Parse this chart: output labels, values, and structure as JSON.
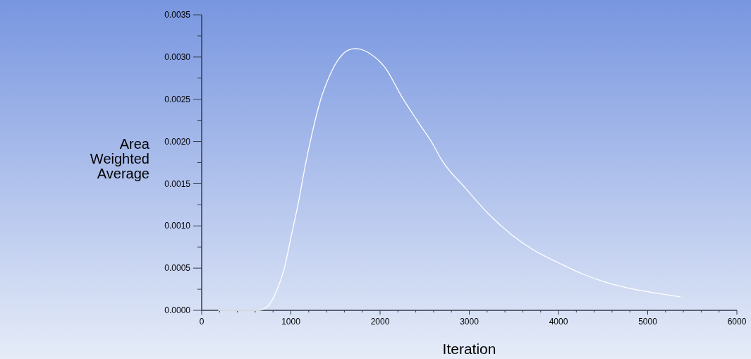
{
  "chart_data": {
    "type": "line",
    "xlabel": "Iteration",
    "ylabel": "Area Weighted Average",
    "x": [
      190,
      637,
      742,
      848,
      927,
      1006,
      1085,
      1164,
      1243,
      1321,
      1427,
      1532,
      1638,
      1730,
      1901,
      2059,
      2243,
      2427,
      2585,
      2691,
      2954,
      3217,
      3481,
      3744,
      4007,
      4271,
      4534,
      4797,
      5061,
      5363
    ],
    "series": [
      {
        "color": "#ffffff",
        "values": [
          0,
          0,
          5e-05,
          0.00025,
          0.0005,
          0.00089,
          0.00128,
          0.00173,
          0.00212,
          0.00245,
          0.00276,
          0.00297,
          0.00308,
          0.0031,
          0.00303,
          0.00287,
          0.00253,
          0.00223,
          0.00198,
          0.00178,
          0.00145,
          0.00114,
          0.00089,
          0.0007,
          0.00056,
          0.00043,
          0.00033,
          0.00026,
          0.00021,
          0.00016
        ]
      }
    ],
    "xlim": [
      0,
      6000
    ],
    "xticks": [
      0,
      {
        "value": 200,
        "label": null
      },
      {
        "value": 400,
        "label": null
      },
      {
        "value": 600,
        "label": null
      },
      {
        "value": 800,
        "label": null
      },
      1000,
      {
        "value": 1200,
        "label": null
      },
      {
        "value": 1400,
        "label": null
      },
      {
        "value": 1600,
        "label": null
      },
      {
        "value": 1800,
        "label": null
      },
      2000,
      {
        "value": 2200,
        "label": null
      },
      {
        "value": 2400,
        "label": null
      },
      {
        "value": 2600,
        "label": null
      },
      {
        "value": 2800,
        "label": null
      },
      3000,
      {
        "value": 3200,
        "label": null
      },
      {
        "value": 3400,
        "label": null
      },
      {
        "value": 3600,
        "label": null
      },
      {
        "value": 3800,
        "label": null
      },
      4000,
      {
        "value": 4200,
        "label": null
      },
      {
        "value": 4400,
        "label": null
      },
      {
        "value": 4600,
        "label": null
      },
      {
        "value": 4800,
        "label": null
      },
      5000,
      {
        "value": 5200,
        "label": null
      },
      {
        "value": 5400,
        "label": null
      },
      {
        "value": 5600,
        "label": null
      },
      {
        "value": 5800,
        "label": null
      },
      6000
    ],
    "ylim": [
      0,
      0.0035
    ],
    "yticks": [
      {
        "value": 0,
        "label": "0.0000"
      },
      {
        "value": 0.00025,
        "label": null
      },
      {
        "value": 0.0005,
        "label": "0.0005"
      },
      {
        "value": 0.00075,
        "label": null
      },
      {
        "value": 0.001,
        "label": "0.0010"
      },
      {
        "value": 0.00125,
        "label": null
      },
      {
        "value": 0.0015,
        "label": "0.0015"
      },
      {
        "value": 0.00175,
        "label": null
      },
      {
        "value": 0.002,
        "label": "0.0020"
      },
      {
        "value": 0.00225,
        "label": null
      },
      {
        "value": 0.0025,
        "label": "0.0025"
      },
      {
        "value": 0.00275,
        "label": null
      },
      {
        "value": 0.003,
        "label": "0.0030"
      },
      {
        "value": 0.00325,
        "label": null
      },
      {
        "value": 0.0035,
        "label": "0.0035"
      }
    ],
    "grid": false,
    "marker": "none",
    "line_style": "solid"
  }
}
